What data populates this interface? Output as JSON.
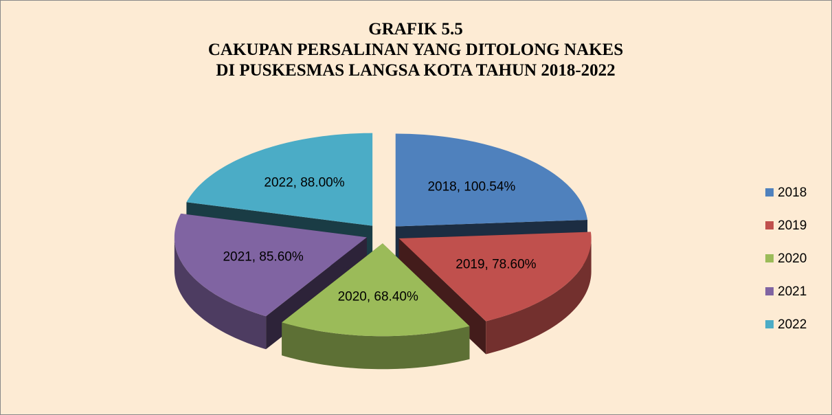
{
  "chart_data": {
    "type": "pie",
    "title": [
      "GRAFIK 5.5",
      "CAKUPAN PERSALINAN YANG DITOLONG NAKES",
      "DI PUSKESMAS LANGSA KOTA TAHUN 2018-2022"
    ],
    "categories": [
      "2018",
      "2019",
      "2020",
      "2021",
      "2022"
    ],
    "values": [
      100.54,
      78.6,
      68.4,
      85.6,
      88.0
    ],
    "value_labels": [
      "2018, 100.54%",
      "2019, 78.60%",
      "2020, 68.40%",
      "2021, 85.60%",
      "2022, 88.00%"
    ],
    "colors": [
      "#4f81bd",
      "#c0504d",
      "#9bbb59",
      "#8064a2",
      "#4bacc6"
    ],
    "legend": "right"
  }
}
